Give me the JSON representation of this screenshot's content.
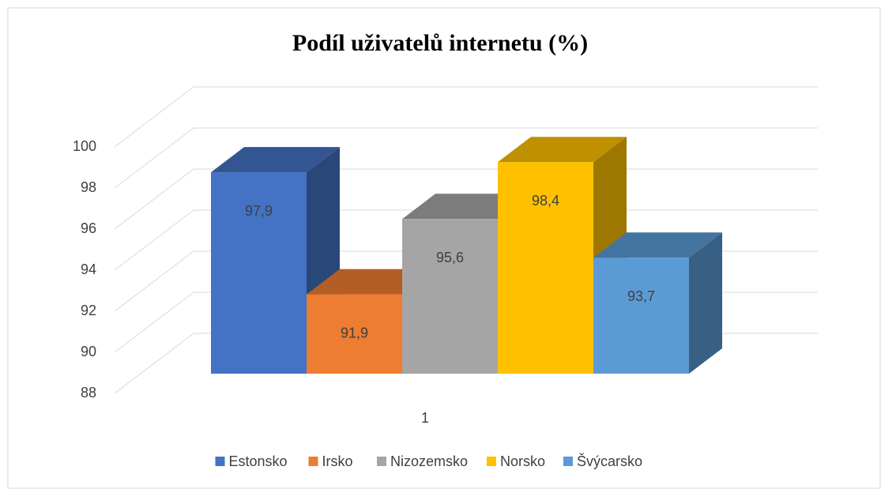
{
  "chart_data": {
    "type": "bar3d",
    "title": "Podíl uživatelů internetu (%)",
    "categories": [
      "1"
    ],
    "series": [
      {
        "name": "Estonsko",
        "color": "#4472c4",
        "values": [
          97.9
        ],
        "value_labels": [
          "97,9"
        ]
      },
      {
        "name": "Irsko",
        "color": "#ed7d31",
        "values": [
          91.9
        ],
        "value_labels": [
          "91,9"
        ]
      },
      {
        "name": "Nizozemsko",
        "color": "#a5a5a5",
        "values": [
          95.6
        ],
        "value_labels": [
          "95,6"
        ]
      },
      {
        "name": "Norsko",
        "color": "#ffc000",
        "values": [
          98.4
        ],
        "value_labels": [
          "98,4"
        ]
      },
      {
        "name": "Švýcarsko",
        "color": "#5b9bd5",
        "values": [
          93.7
        ],
        "value_labels": [
          "93,7"
        ]
      }
    ],
    "ylim": [
      88,
      100
    ],
    "yticks": [
      88,
      90,
      92,
      94,
      96,
      98,
      100
    ],
    "grid": true,
    "legend": "bottom"
  }
}
